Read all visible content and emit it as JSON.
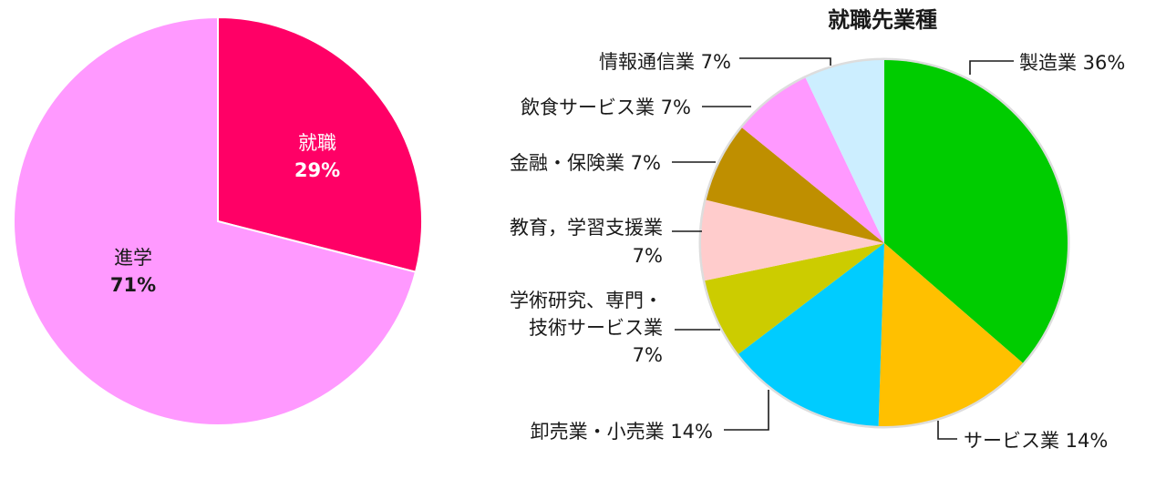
{
  "chart_data": [
    {
      "type": "pie",
      "title": "",
      "categories": [
        "就職",
        "進学"
      ],
      "values": [
        29,
        71
      ],
      "value_labels": [
        "29%",
        "71%"
      ],
      "colors": [
        "#ff0066",
        "#ff99ff"
      ],
      "legend": "none"
    },
    {
      "type": "pie",
      "title": "就職先業種",
      "categories": [
        "製造業",
        "サービス業",
        "卸売業・小売業",
        "学術研究、専門・技術サービス業",
        "教育，学習支援業",
        "金融・保険業",
        "飲食サービス業",
        "情報通信業"
      ],
      "values": [
        36,
        14,
        14,
        7,
        7,
        7,
        7,
        7
      ],
      "labels": [
        [
          "製造業 36%"
        ],
        [
          "サービス業 14%"
        ],
        [
          "卸売業・小売業 14%"
        ],
        [
          "学術研究、専門・",
          "技術サービス業",
          "7%"
        ],
        [
          "教育，学習支援業",
          "7%"
        ],
        [
          "金融・保険業 7%"
        ],
        [
          "飲食サービス業 7%"
        ],
        [
          "情報通信業 7%"
        ]
      ],
      "colors": [
        "#00cc00",
        "#ffc000",
        "#00ccff",
        "#cccc00",
        "#ffcccc",
        "#bf8f00",
        "#ff99ff",
        "#cceeff"
      ],
      "legend": "none"
    }
  ]
}
